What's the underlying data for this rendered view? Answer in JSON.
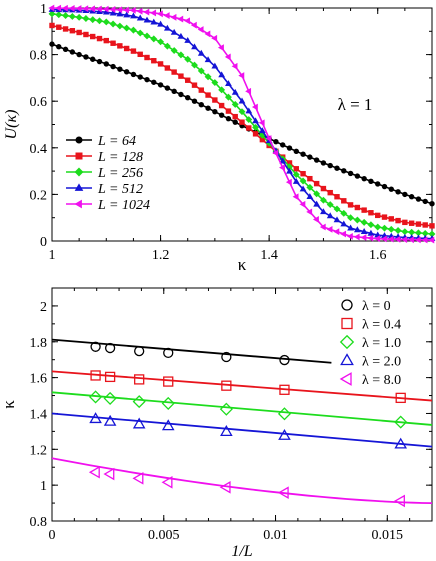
{
  "chart_data": [
    {
      "type": "line",
      "panel": "top",
      "xlabel": "κ",
      "ylabel": "U(κ)",
      "annotation": "λ = 1",
      "xlim": [
        1,
        1.7
      ],
      "ylim": [
        0,
        1
      ],
      "xticks": [
        "1",
        "1.2",
        "1.4",
        "1.6"
      ],
      "yticks": [
        "0",
        "0.2",
        "0.4",
        "0.6",
        "0.8",
        "1"
      ],
      "legend_position": "lower-left",
      "series": [
        {
          "name": "L = 64",
          "color": "#000000",
          "marker": "circle",
          "x": [
            1.0,
            1.05,
            1.1,
            1.15,
            1.2,
            1.25,
            1.3,
            1.35,
            1.4,
            1.45,
            1.5,
            1.55,
            1.6,
            1.65,
            1.7
          ],
          "y": [
            0.845,
            0.8,
            0.76,
            0.715,
            0.67,
            0.615,
            0.555,
            0.495,
            0.44,
            0.385,
            0.335,
            0.29,
            0.245,
            0.2,
            0.16
          ]
        },
        {
          "name": "L = 128",
          "color": "#e8141c",
          "marker": "square",
          "x": [
            1.0,
            1.05,
            1.1,
            1.15,
            1.2,
            1.25,
            1.3,
            1.35,
            1.4,
            1.45,
            1.5,
            1.55,
            1.6,
            1.65,
            1.7
          ],
          "y": [
            0.925,
            0.895,
            0.86,
            0.815,
            0.76,
            0.69,
            0.605,
            0.51,
            0.41,
            0.31,
            0.225,
            0.155,
            0.11,
            0.08,
            0.065
          ]
        },
        {
          "name": "L = 256",
          "color": "#1ddc1d",
          "marker": "diamond",
          "x": [
            1.0,
            1.05,
            1.1,
            1.15,
            1.2,
            1.25,
            1.3,
            1.35,
            1.4,
            1.45,
            1.5,
            1.55,
            1.6,
            1.65,
            1.7
          ],
          "y": [
            0.975,
            0.96,
            0.94,
            0.905,
            0.855,
            0.78,
            0.68,
            0.555,
            0.42,
            0.285,
            0.175,
            0.1,
            0.06,
            0.04,
            0.03
          ]
        },
        {
          "name": "L = 512",
          "color": "#1515d6",
          "marker": "triangle-up",
          "x": [
            1.0,
            1.05,
            1.1,
            1.15,
            1.2,
            1.25,
            1.3,
            1.35,
            1.4,
            1.45,
            1.5,
            1.55,
            1.6,
            1.65,
            1.7
          ],
          "y": [
            0.993,
            0.99,
            0.982,
            0.965,
            0.93,
            0.86,
            0.75,
            0.6,
            0.43,
            0.255,
            0.125,
            0.055,
            0.025,
            0.015,
            0.01
          ]
        },
        {
          "name": "L = 1024",
          "color": "#f010ee",
          "marker": "triangle-left",
          "x": [
            1.0,
            1.05,
            1.1,
            1.15,
            1.2,
            1.25,
            1.3,
            1.35,
            1.4,
            1.45,
            1.5,
            1.55,
            1.6,
            1.65,
            1.7
          ],
          "y": [
            1.0,
            0.998,
            0.995,
            0.99,
            0.975,
            0.945,
            0.87,
            0.71,
            0.44,
            0.19,
            0.06,
            0.02,
            0.01,
            0.006,
            0.004
          ]
        }
      ]
    },
    {
      "type": "scatter",
      "panel": "bottom",
      "xlabel": "1/L",
      "ylabel": "κ",
      "xlim": [
        0,
        0.017
      ],
      "ylim": [
        0.8,
        2.1
      ],
      "xticks": [
        "0",
        "0.005",
        "0.01",
        "0.015"
      ],
      "yticks": [
        "0.8",
        "1",
        "1.2",
        "1.4",
        "1.6",
        "1.8",
        "2"
      ],
      "legend_position": "top-right",
      "series": [
        {
          "name": "λ = 0",
          "color": "#000000",
          "marker": "circle",
          "x": [
            0.00195,
            0.0026,
            0.0039,
            0.0052,
            0.0078,
            0.0104
          ],
          "y": [
            1.772,
            1.765,
            1.748,
            1.738,
            1.715,
            1.698
          ],
          "fit_x": [
            0,
            0.0125
          ],
          "fit_y": [
            1.812,
            1.683
          ]
        },
        {
          "name": "λ = 0.4",
          "color": "#e8141c",
          "marker": "square",
          "x": [
            0.00195,
            0.0026,
            0.0039,
            0.0052,
            0.0078,
            0.0104,
            0.0156
          ],
          "y": [
            1.612,
            1.604,
            1.59,
            1.578,
            1.555,
            1.532,
            1.487
          ],
          "fit_x": [
            0,
            0.017
          ],
          "fit_y": [
            1.635,
            1.472
          ]
        },
        {
          "name": "λ = 1.0",
          "color": "#1ddc1d",
          "marker": "diamond",
          "x": [
            0.00195,
            0.0026,
            0.0039,
            0.0052,
            0.0078,
            0.0104,
            0.0156
          ],
          "y": [
            1.492,
            1.484,
            1.466,
            1.456,
            1.424,
            1.398,
            1.352
          ],
          "fit_x": [
            0,
            0.017
          ],
          "fit_y": [
            1.518,
            1.336
          ]
        },
        {
          "name": "λ = 2.0",
          "color": "#1515d6",
          "marker": "triangle-up",
          "x": [
            0.00195,
            0.0026,
            0.0039,
            0.0052,
            0.0078,
            0.0104,
            0.0156
          ],
          "y": [
            1.37,
            1.355,
            1.34,
            1.33,
            1.298,
            1.276,
            1.228
          ],
          "fit_x": [
            0,
            0.017
          ],
          "fit_y": [
            1.4,
            1.215
          ]
        },
        {
          "name": "λ = 8.0",
          "color": "#f010ee",
          "marker": "triangle-left",
          "x": [
            0.00195,
            0.0026,
            0.0039,
            0.0052,
            0.0078,
            0.0104,
            0.0156
          ],
          "y": [
            1.072,
            1.062,
            1.038,
            1.016,
            0.988,
            0.958,
            0.912
          ],
          "fit_x": [
            0,
            0.017
          ],
          "fit_y": [
            1.15,
            0.9
          ],
          "fit_curve": true
        }
      ]
    }
  ]
}
